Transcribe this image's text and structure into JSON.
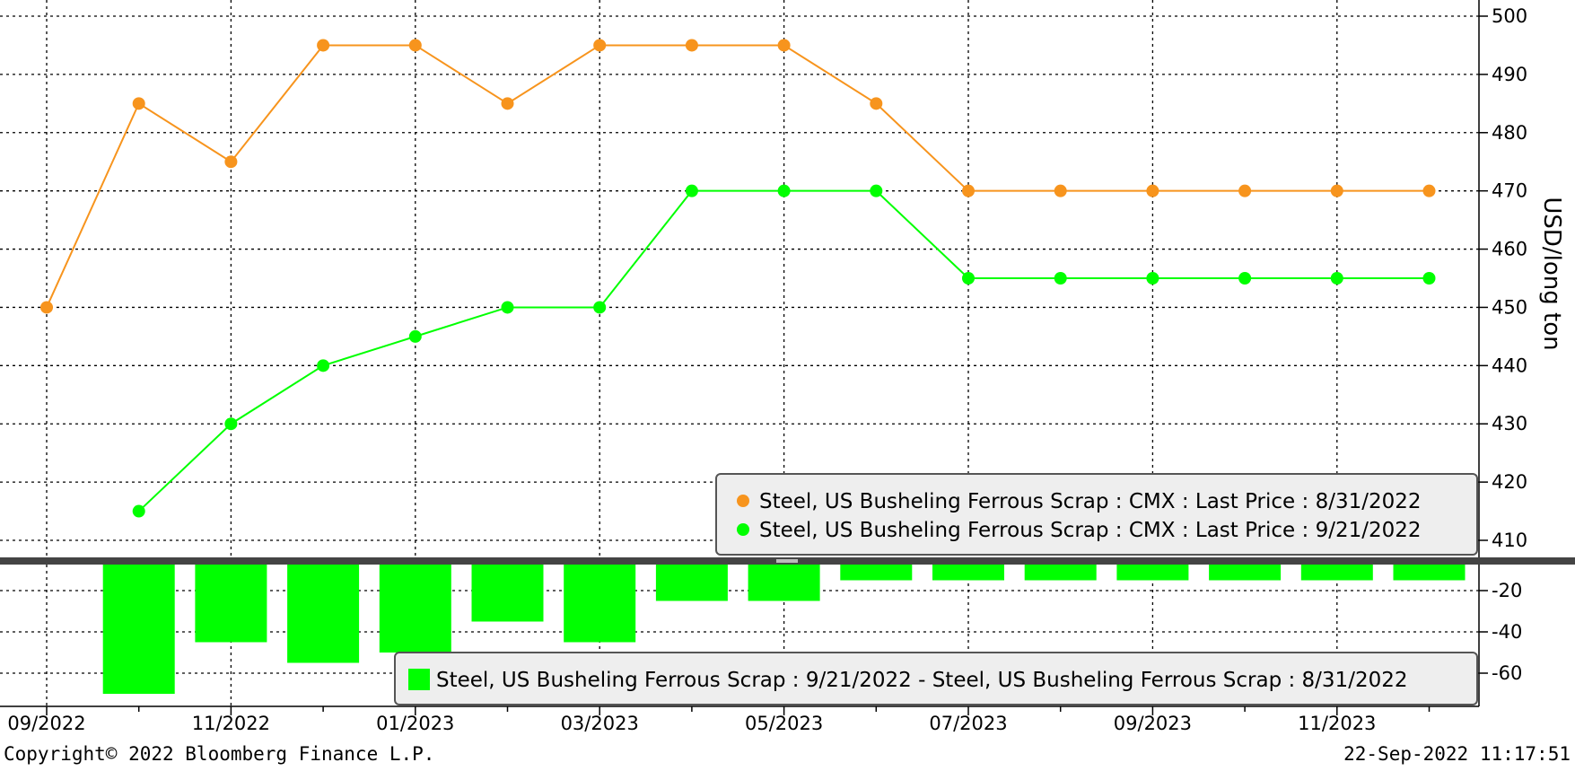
{
  "chart_data": {
    "type": "line",
    "x": [
      "2022-09",
      "2022-10",
      "2022-11",
      "2022-12",
      "2023-01",
      "2023-02",
      "2023-03",
      "2023-04",
      "2023-05",
      "2023-06",
      "2023-07",
      "2023-08",
      "2023-09",
      "2023-10",
      "2023-11",
      "2023-12"
    ],
    "x_tick_labels": [
      "09/2022",
      "11/2022",
      "01/2023",
      "03/2023",
      "05/2023",
      "07/2023",
      "09/2023",
      "11/2023"
    ],
    "ylabel": "USD/long ton",
    "ylim": [
      405,
      502
    ],
    "y_ticks": [
      410,
      420,
      430,
      440,
      450,
      460,
      470,
      480,
      490,
      500
    ],
    "grid": true,
    "series": [
      {
        "name": "Steel, US Busheling Ferrous Scrap : CMX : Last Price : 8/31/2022",
        "color": "#f7941d",
        "values": [
          450,
          485,
          475,
          495,
          495,
          485,
          495,
          495,
          495,
          485,
          470,
          470,
          470,
          470,
          470,
          470
        ]
      },
      {
        "name": "Steel, US Busheling Ferrous Scrap : CMX : Last Price : 9/21/2022",
        "color": "#00ff00",
        "values": [
          null,
          415,
          430,
          440,
          445,
          450,
          450,
          470,
          470,
          470,
          455,
          455,
          455,
          455,
          455,
          455
        ]
      }
    ],
    "legend_position": "bottom-right",
    "lower_panel": {
      "type": "bar",
      "name": "Steel, US Busheling Ferrous Scrap : 9/21/2022 - Steel, US Busheling Ferrous Scrap : 8/31/2022",
      "color": "#00ff00",
      "x": [
        "2022-10",
        "2022-11",
        "2022-12",
        "2023-01",
        "2023-02",
        "2023-03",
        "2023-04",
        "2023-05",
        "2023-06",
        "2023-07",
        "2023-08",
        "2023-09",
        "2023-10",
        "2023-11",
        "2023-12"
      ],
      "values": [
        -70,
        -45,
        -55,
        -50,
        -35,
        -45,
        -25,
        -25,
        -15,
        -15,
        -15,
        -15,
        -15,
        -15,
        -15
      ],
      "ylim": [
        -75,
        0
      ],
      "y_ticks": [
        -20,
        -40,
        -60
      ],
      "legend_position": "bottom-right"
    }
  },
  "footer": {
    "copyright": "Copyright© 2022 Bloomberg Finance L.P.",
    "timestamp": "22-Sep-2022 11:17:51"
  }
}
